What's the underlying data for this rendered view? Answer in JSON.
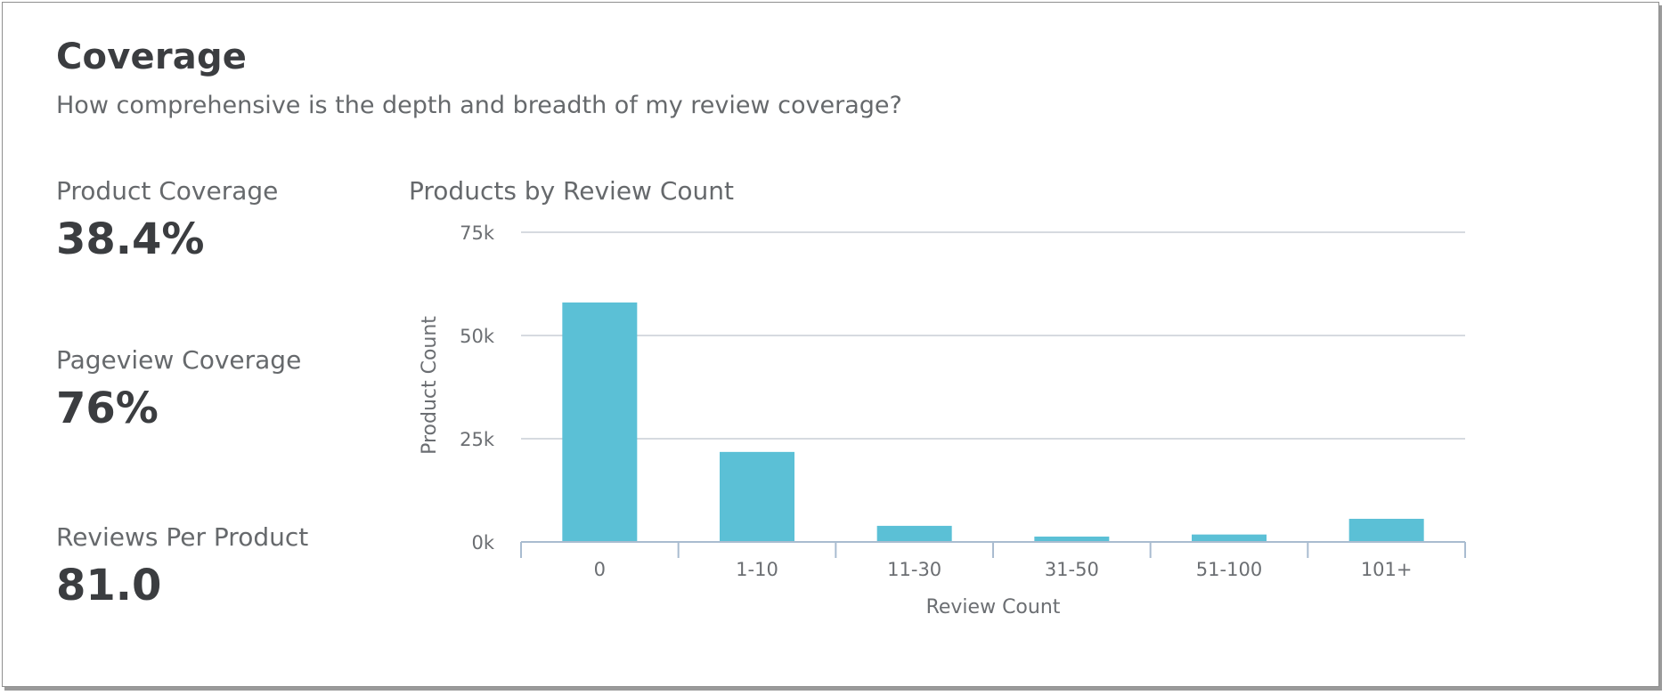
{
  "header": {
    "title": "Coverage",
    "subtitle": "How comprehensive is the depth and breadth of my review coverage?"
  },
  "metrics": [
    {
      "label": "Product Coverage",
      "value": "38.4%"
    },
    {
      "label": "Pageview Coverage",
      "value": "76%"
    },
    {
      "label": "Reviews Per Product",
      "value": "81.0"
    }
  ],
  "colors": {
    "bar": "#5bc0d6",
    "grid": "#c9ced6",
    "axis": "#a9bcd0"
  },
  "chart_data": {
    "type": "bar",
    "title": "Products by Review Count",
    "xlabel": "Review Count",
    "ylabel": "Product Count",
    "categories": [
      "0",
      "1-10",
      "11-30",
      "31-50",
      "51-100",
      "101+"
    ],
    "values": [
      58000,
      21800,
      3900,
      1300,
      1800,
      5600
    ],
    "ylim": [
      0,
      75000
    ],
    "yticks": [
      {
        "value": 0,
        "label": "0k"
      },
      {
        "value": 25000,
        "label": "25k"
      },
      {
        "value": 50000,
        "label": "50k"
      },
      {
        "value": 75000,
        "label": "75k"
      }
    ],
    "grid": true,
    "legend": "none"
  }
}
